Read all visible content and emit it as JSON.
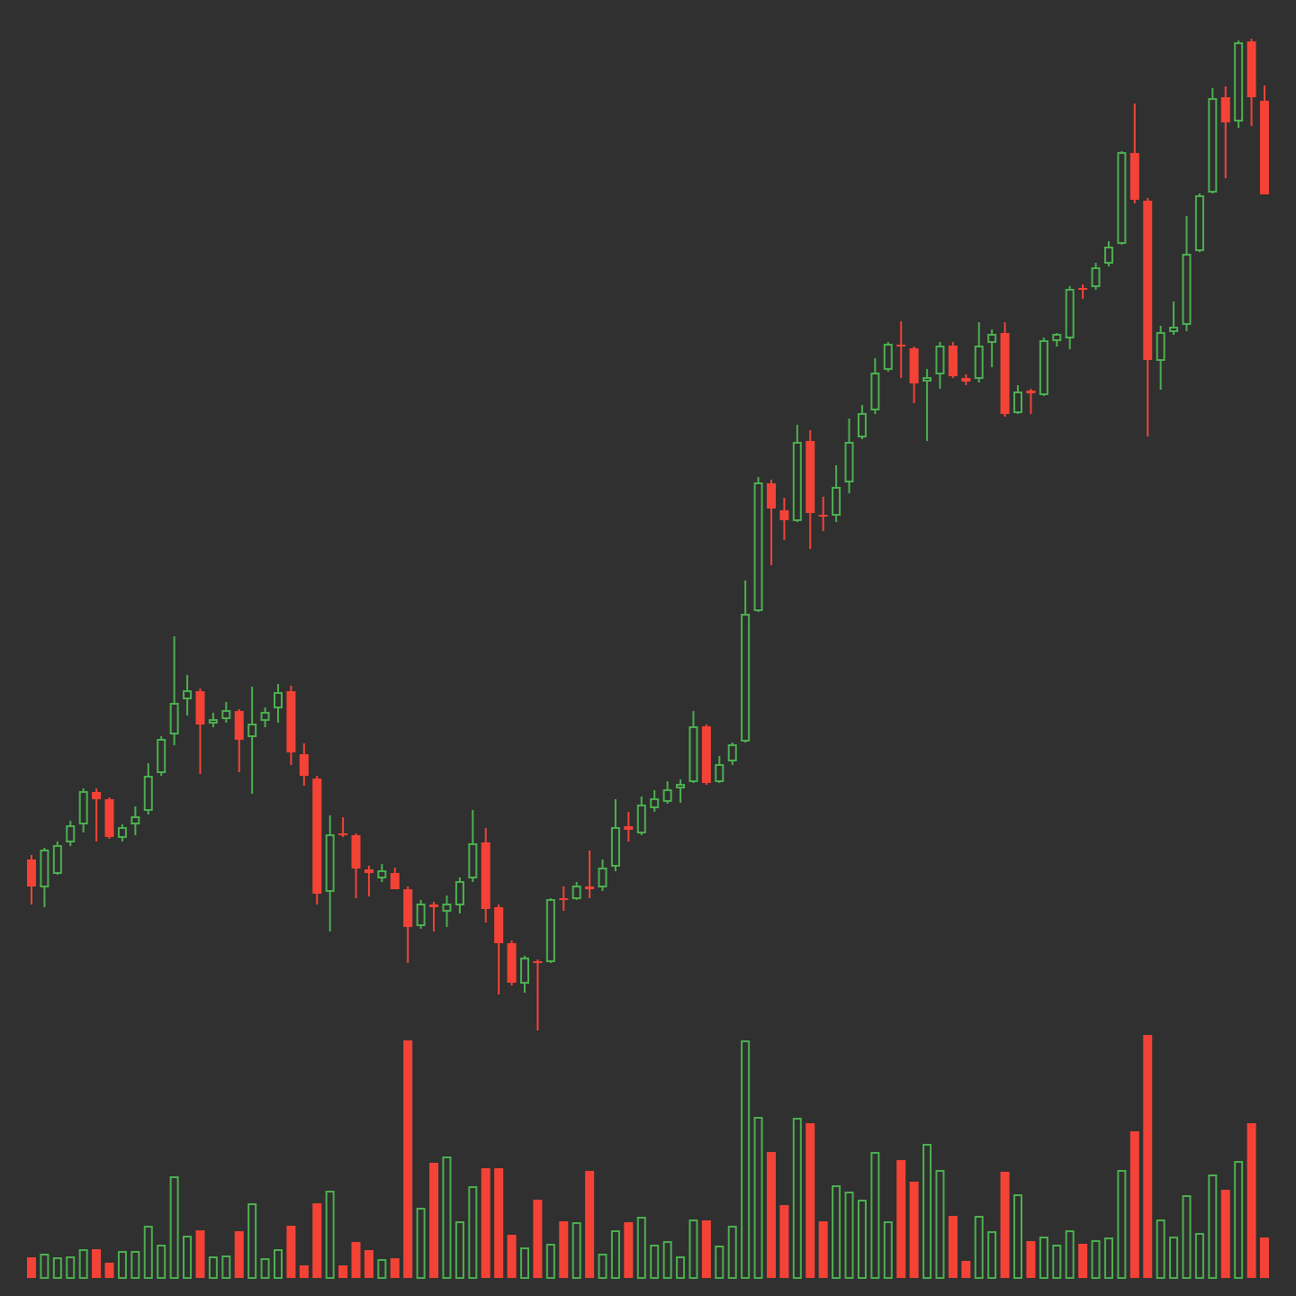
{
  "chart_data": {
    "type": "candlestick",
    "up_color": "#4caf50",
    "down_color": "#f44336",
    "ylim": [
      0,
      144
    ],
    "volume_ylim": [
      0,
      1420
    ],
    "open": [
      48.5,
      45.5,
      47.0,
      50.5,
      52.5,
      56.0,
      55.2,
      51.0,
      52.5,
      54.0,
      58.2,
      62.5,
      66.4,
      67.2,
      63.7,
      64.2,
      65.0,
      62.2,
      64.0,
      65.4,
      67.2,
      60.2,
      57.5,
      45.0,
      51.4,
      51.2,
      47.4,
      46.5,
      47.0,
      45.2,
      41.2,
      43.5,
      42.8,
      43.5,
      46.5,
      50.4,
      43.2,
      39.2,
      34.8,
      37.2,
      37.2,
      44.2,
      44.2,
      45.5,
      45.5,
      47.8,
      52.2,
      51.5,
      54.3,
      55.0,
      56.5,
      57.2,
      63.3,
      57.2,
      59.5,
      61.7,
      76.2,
      90.3,
      87.3,
      86.2,
      95.0,
      86.8,
      86.8,
      90.5,
      95.5,
      98.5,
      103.0,
      105.7,
      105.3,
      101.7,
      102.5,
      105.6,
      102.0,
      102.0,
      106.0,
      107.0,
      98.2,
      100.6,
      100.2,
      106.2,
      106.5,
      112.0,
      112.2,
      114.8,
      117.0,
      127.0,
      121.7,
      104.0,
      107.2,
      108.0,
      116.2,
      122.7,
      133.2,
      130.6,
      139.4,
      132.8
    ],
    "high": [
      49.0,
      49.8,
      50.5,
      52.8,
      56.4,
      56.4,
      55.4,
      52.4,
      54.4,
      59.2,
      62.2,
      73.3,
      69.0,
      67.5,
      64.8,
      66.0,
      65.2,
      67.7,
      65.4,
      68.0,
      67.8,
      61.4,
      57.8,
      53.4,
      53.2,
      51.4,
      47.8,
      48.0,
      47.6,
      45.5,
      44.0,
      43.8,
      44.5,
      46.5,
      54.0,
      52.0,
      43.5,
      39.5,
      37.8,
      37.4,
      44.2,
      45.5,
      46.0,
      49.5,
      48.5,
      55.2,
      53.8,
      55.5,
      56.2,
      57.2,
      57.4,
      65.0,
      63.5,
      60.0,
      61.5,
      79.5,
      91.0,
      90.7,
      88.7,
      96.8,
      96.2,
      88.8,
      92.3,
      97.5,
      99.0,
      104.2,
      106.0,
      108.3,
      105.5,
      103.0,
      106.0,
      106.0,
      102.4,
      108.2,
      107.4,
      108.2,
      101.2,
      100.8,
      106.5,
      107.0,
      112.2,
      112.4,
      114.8,
      117.2,
      127.2,
      132.5,
      122.0,
      107.8,
      110.5,
      120.0,
      122.5,
      134.2,
      134.4,
      139.5,
      139.7,
      134.5
    ],
    "low": [
      43.5,
      43.2,
      46.8,
      50.0,
      51.5,
      50.5,
      50.8,
      50.5,
      51.2,
      53.5,
      57.8,
      61.2,
      64.5,
      58.0,
      63.2,
      63.7,
      58.2,
      55.8,
      63.2,
      63.7,
      59.0,
      56.7,
      43.5,
      40.5,
      51.0,
      44.2,
      44.4,
      46.0,
      45.2,
      37.0,
      40.8,
      40.5,
      41.0,
      42.5,
      46.0,
      41.5,
      33.5,
      34.5,
      33.7,
      29.5,
      37.0,
      42.8,
      44.0,
      44.2,
      45.0,
      47.2,
      50.5,
      51.2,
      53.8,
      54.7,
      54.8,
      57.0,
      56.8,
      57.0,
      59.0,
      61.5,
      76.0,
      81.2,
      84.0,
      86.0,
      83.0,
      85.0,
      86.0,
      89.2,
      95.2,
      98.0,
      102.7,
      102.0,
      99.2,
      95.0,
      100.8,
      102.0,
      101.2,
      101.5,
      103.2,
      97.7,
      98.0,
      98.0,
      100.0,
      105.5,
      105.2,
      110.8,
      111.8,
      114.4,
      116.8,
      121.4,
      95.5,
      100.7,
      106.8,
      107.2,
      116.0,
      122.5,
      124.2,
      129.8,
      130.0,
      122.4
    ],
    "close": [
      45.5,
      49.5,
      50.0,
      52.2,
      56.0,
      55.2,
      51.0,
      52.0,
      53.2,
      57.7,
      61.8,
      65.8,
      67.2,
      63.5,
      64.0,
      65.0,
      61.8,
      63.5,
      64.8,
      67.0,
      60.4,
      57.8,
      44.7,
      51.2,
      51.2,
      47.5,
      47.0,
      47.2,
      45.2,
      41.0,
      43.5,
      43.2,
      43.5,
      46.0,
      50.2,
      43.0,
      39.2,
      34.8,
      37.5,
      37.0,
      44.0,
      44.0,
      45.5,
      45.2,
      47.5,
      52.0,
      51.8,
      54.5,
      55.2,
      56.2,
      56.8,
      63.2,
      57.0,
      59.0,
      61.2,
      75.7,
      90.3,
      87.5,
      86.2,
      94.8,
      87.0,
      86.6,
      89.8,
      94.8,
      98.0,
      102.5,
      105.7,
      105.6,
      101.4,
      102.0,
      105.5,
      102.2,
      101.6,
      105.5,
      106.8,
      98.0,
      100.4,
      100.3,
      106.1,
      106.8,
      111.8,
      111.8,
      114.2,
      116.5,
      127.0,
      121.8,
      104.0,
      107.0,
      107.6,
      115.7,
      122.2,
      133.0,
      130.4,
      139.2,
      133.2,
      122.4
    ],
    "volume": [
      23,
      27,
      23,
      24,
      32,
      32,
      17,
      30,
      30,
      58,
      37,
      113,
      47,
      53,
      24,
      25,
      52,
      83,
      22,
      32,
      58,
      14,
      83,
      97,
      14,
      40,
      31,
      21,
      22,
      264,
      78,
      128,
      135,
      63,
      102,
      122,
      122,
      48,
      34,
      87,
      38,
      63,
      62,
      119,
      27,
      53,
      62,
      68,
      37,
      41,
      24,
      65,
      64,
      36,
      58,
      264,
      179,
      140,
      81,
      178,
      172,
      63,
      103,
      96,
      87,
      140,
      63,
      131,
      107,
      149,
      120,
      69,
      19,
      69,
      52,
      118,
      93,
      41,
      46,
      37,
      53,
      38,
      42,
      45,
      120,
      163,
      270,
      65,
      46,
      92,
      50,
      115,
      98,
      130,
      172,
      45
    ]
  }
}
